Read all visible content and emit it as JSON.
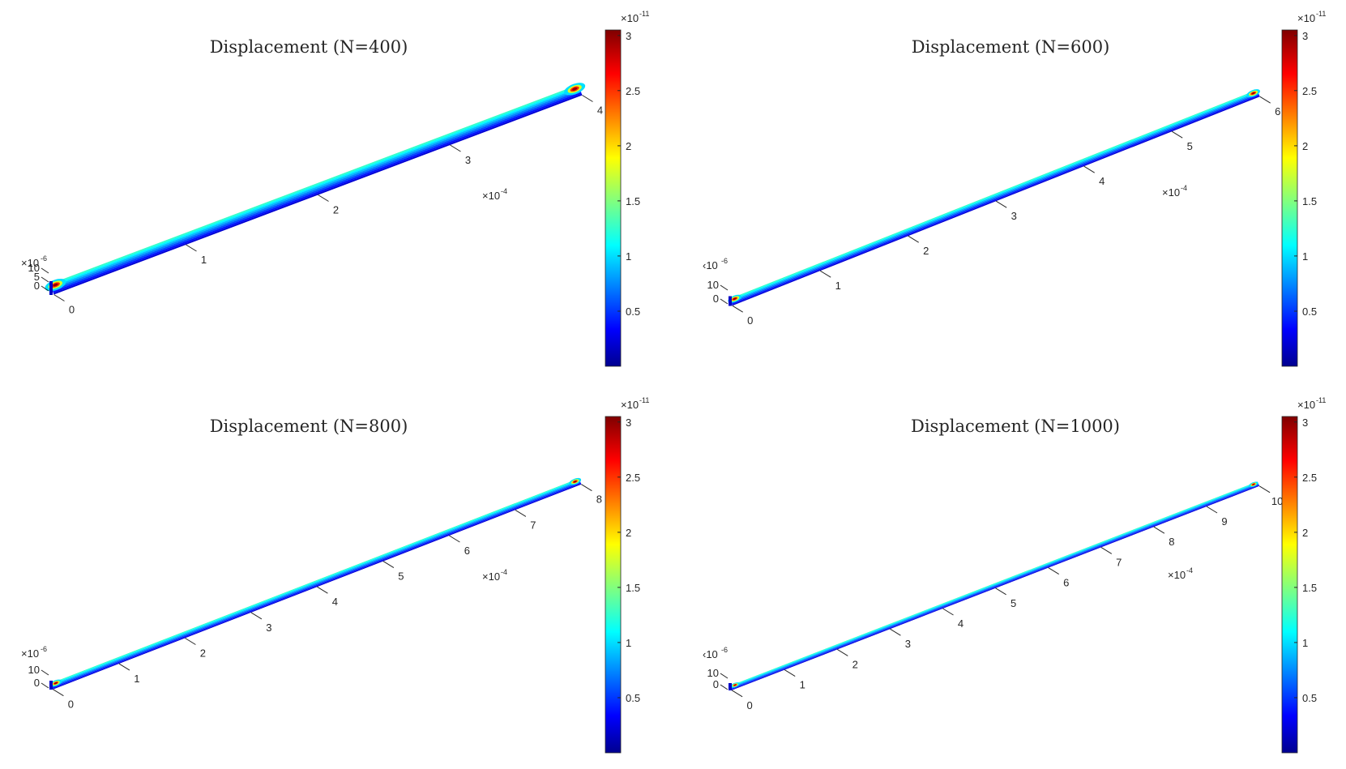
{
  "chart_data": [
    {
      "type": "heatmap",
      "title": "Displacement (N=400)",
      "x_exponent": "×10⁻⁴",
      "x_exponent_base": "×10",
      "x_exponent_power": "-4",
      "z_exponent_base": "×10",
      "z_exponent_power": "-6",
      "x_ticks": [
        0,
        1,
        2,
        3,
        4
      ],
      "x_tick_labels": [
        "0",
        "1",
        "2",
        "3",
        "4"
      ],
      "xlim": [
        0,
        4
      ],
      "z_ticks": [
        0,
        5,
        10
      ],
      "z_tick_labels": [
        "0",
        "5",
        "10"
      ],
      "colorbar": {
        "exponent_base": "×10",
        "exponent_power": "-11",
        "ticks": [
          0.5,
          1,
          1.5,
          2,
          2.5,
          3
        ],
        "tick_labels": [
          "0.5",
          "1",
          "1.5",
          "2",
          "2.5",
          "3"
        ],
        "range": [
          0,
          3.05
        ],
        "colormap": "jet"
      },
      "beam_max_value": 3,
      "beam_typical_value": 1.3
    },
    {
      "type": "heatmap",
      "title": "Displacement (N=600)",
      "x_exponent_base": "×10",
      "x_exponent_power": "-4",
      "z_exponent_base": "‹10",
      "z_exponent_power": "-6",
      "x_ticks": [
        0,
        1,
        2,
        3,
        4,
        5,
        6
      ],
      "x_tick_labels": [
        "0",
        "1",
        "2",
        "3",
        "4",
        "5",
        "6"
      ],
      "xlim": [
        0,
        6
      ],
      "z_ticks": [
        0,
        10
      ],
      "z_tick_labels": [
        "0",
        "10"
      ],
      "colorbar": {
        "exponent_base": "×10",
        "exponent_power": "-11",
        "ticks": [
          0.5,
          1,
          1.5,
          2,
          2.5,
          3
        ],
        "tick_labels": [
          "0.5",
          "1",
          "1.5",
          "2",
          "2.5",
          "3"
        ],
        "range": [
          0,
          3.05
        ],
        "colormap": "jet"
      },
      "beam_max_value": 3,
      "beam_typical_value": 1.3
    },
    {
      "type": "heatmap",
      "title": "Displacement (N=800)",
      "x_exponent_base": "×10",
      "x_exponent_power": "-4",
      "z_exponent_base": "×10",
      "z_exponent_power": "-6",
      "x_ticks": [
        0,
        1,
        2,
        3,
        4,
        5,
        6,
        7,
        8
      ],
      "x_tick_labels": [
        "0",
        "1",
        "2",
        "3",
        "4",
        "5",
        "6",
        "7",
        "8"
      ],
      "xlim": [
        0,
        8
      ],
      "z_ticks": [
        0,
        10
      ],
      "z_tick_labels": [
        "0",
        "10"
      ],
      "colorbar": {
        "exponent_base": "×10",
        "exponent_power": "-11",
        "ticks": [
          0.5,
          1,
          1.5,
          2,
          2.5,
          3
        ],
        "tick_labels": [
          "0.5",
          "1",
          "1.5",
          "2",
          "2.5",
          "3"
        ],
        "range": [
          0,
          3.05
        ],
        "colormap": "jet"
      },
      "beam_max_value": 3,
      "beam_typical_value": 1.3
    },
    {
      "type": "heatmap",
      "title": "Displacement (N=1000)",
      "x_exponent_base": "×10",
      "x_exponent_power": "-4",
      "z_exponent_base": "‹10",
      "z_exponent_power": "-6",
      "x_ticks": [
        0,
        1,
        2,
        3,
        4,
        5,
        6,
        7,
        8,
        9,
        10
      ],
      "x_tick_labels": [
        "0",
        "1",
        "2",
        "3",
        "4",
        "5",
        "6",
        "7",
        "8",
        "9",
        "10"
      ],
      "xlim": [
        0,
        10
      ],
      "z_ticks": [
        0,
        10
      ],
      "z_tick_labels": [
        "0",
        "10"
      ],
      "colorbar": {
        "exponent_base": "×10",
        "exponent_power": "-11",
        "ticks": [
          0.5,
          1,
          1.5,
          2,
          2.5,
          3
        ],
        "tick_labels": [
          "0.5",
          "1",
          "1.5",
          "2",
          "2.5",
          "3"
        ],
        "range": [
          0,
          3.05
        ],
        "colormap": "jet"
      },
      "beam_max_value": 3,
      "beam_typical_value": 1.3
    }
  ],
  "colors": {
    "text": "#262626",
    "axis": "#262626",
    "jet_low": "#00008f",
    "jet_high": "#800000"
  }
}
